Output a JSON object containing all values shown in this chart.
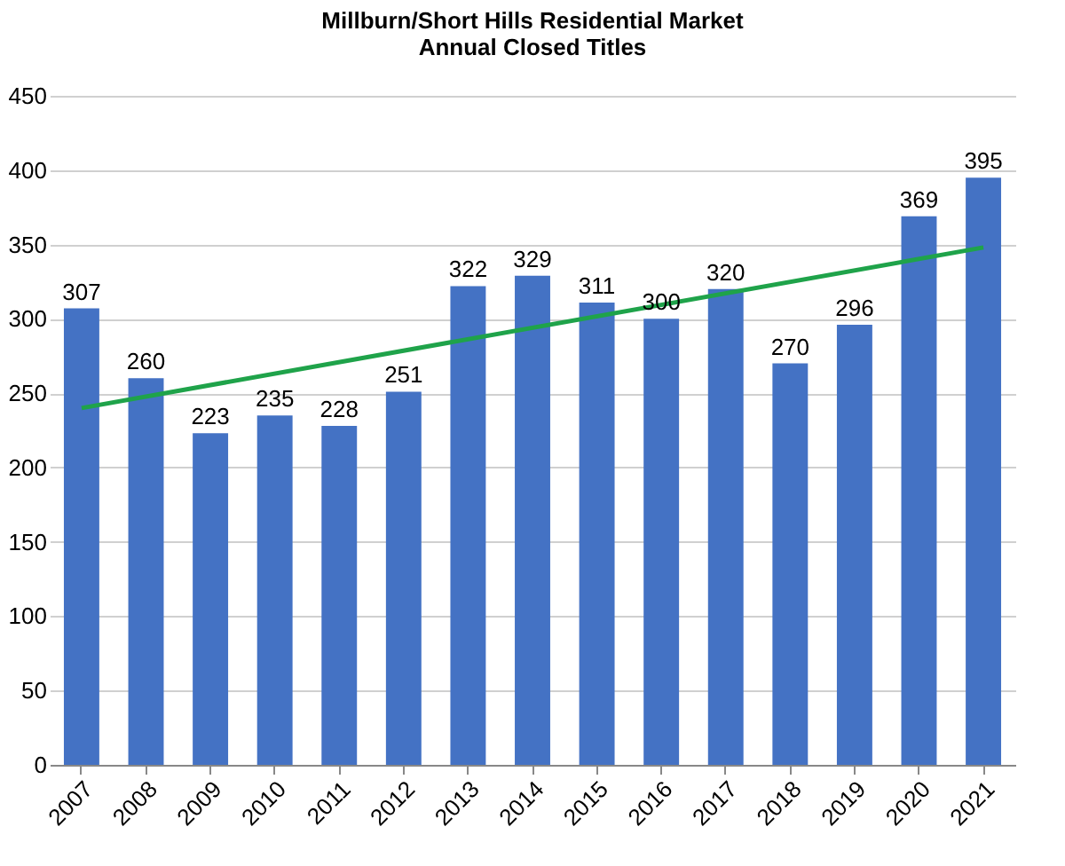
{
  "chart_data": {
    "type": "bar",
    "title": "Millburn/Short Hills Residential Market\nAnnual Closed Titles",
    "categories": [
      "2007",
      "2008",
      "2009",
      "2010",
      "2011",
      "2012",
      "2013",
      "2014",
      "2015",
      "2016",
      "2017",
      "2018",
      "2019",
      "2020",
      "2021"
    ],
    "series": [
      {
        "color": "#4472c4",
        "values": [
          307,
          260,
          223,
          235,
          228,
          251,
          322,
          329,
          311,
          300,
          320,
          270,
          296,
          369,
          395
        ],
        "value_labels": [
          "307",
          "260",
          "223",
          "235",
          "228",
          "251",
          "322",
          "329",
          "311",
          "300",
          "320",
          "270",
          "296",
          "369",
          "395"
        ]
      },
      {
        "type": "line",
        "color": "#1fa34a",
        "values": [
          240,
          null,
          null,
          null,
          null,
          null,
          null,
          null,
          null,
          null,
          null,
          null,
          null,
          null,
          348
        ]
      }
    ],
    "ylim": [
      0,
      450
    ],
    "yticks": [
      0,
      50,
      100,
      150,
      200,
      250,
      300,
      350,
      400,
      450
    ],
    "grid": "y"
  }
}
